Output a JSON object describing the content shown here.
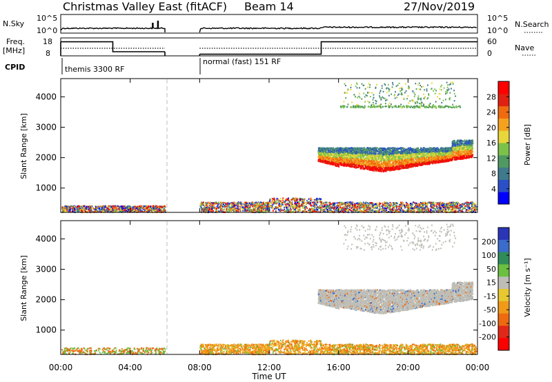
{
  "header": {
    "title": "Christmas Valley East (fitACF)",
    "beam": "Beam 14",
    "date": "27/Nov/2019"
  },
  "panels": {
    "nsky": {
      "label": "N.Sky",
      "ticks": [
        "10^5",
        "10^0"
      ],
      "right_label": "N.Search",
      "right_ticks": [
        "10^5",
        "10^0"
      ]
    },
    "freq": {
      "label_line1": "Freq.",
      "label_line2": "[MHz]",
      "ticks": [
        "18",
        "8"
      ],
      "right_label": "Nave",
      "right_ticks": [
        "60",
        "0"
      ]
    },
    "cpid": {
      "label": "CPID",
      "segments": [
        {
          "text": "themis 3300 RF",
          "start_hour": 0,
          "end_hour": 6
        },
        {
          "text": "normal (fast) 151 RF",
          "start_hour": 8,
          "end_hour": 24
        }
      ]
    }
  },
  "x_axis": {
    "label": "Time UT",
    "ticks": [
      "00:00",
      "04:00",
      "08:00",
      "12:00",
      "16:00",
      "20:00",
      "00:00"
    ],
    "tick_hours": [
      0,
      4,
      8,
      12,
      16,
      20,
      24
    ],
    "range_hours": [
      0,
      24
    ],
    "data_gap_hours": [
      6,
      8
    ]
  },
  "colors": {
    "power": [
      "#0000ff",
      "#2a4fc8",
      "#3f7a8c",
      "#4f9a62",
      "#7cc24a",
      "#e8d63a",
      "#f4a21e",
      "#f06a10",
      "#e02010",
      "#ff0000"
    ],
    "velocity": [
      "#2a35b8",
      "#3a6ccc",
      "#2f8c58",
      "#6cc040",
      "#bebeb6",
      "#e8c830",
      "#f09a18",
      "#ee6a10",
      "#e02818",
      "#ff0000"
    ]
  },
  "chart_data": [
    {
      "type": "heatmap",
      "name": "power",
      "ylabel": "Slant Range [km]",
      "yticks": [
        1000,
        2000,
        3000,
        4000
      ],
      "ylim": [
        200,
        4600
      ],
      "colorbar": {
        "label": "Power [dB]",
        "ticks": [
          "4",
          "8",
          "12",
          "16",
          "20",
          "24",
          "28"
        ],
        "tick_values": [
          4,
          8,
          12,
          16,
          20,
          24,
          28
        ],
        "range": [
          0,
          32
        ]
      },
      "echo_regions": [
        {
          "hours": [
            0,
            6
          ],
          "range_km": [
            200,
            420
          ],
          "value": "low-mixed"
        },
        {
          "hours": [
            8,
            24
          ],
          "range_km": [
            200,
            520
          ],
          "value": "mixed"
        },
        {
          "hours": [
            14.8,
            23.6
          ],
          "range_km": [
            1500,
            2500
          ],
          "value": "20-28 dB lower edge"
        },
        {
          "hours": [
            16,
            23
          ],
          "range_km": [
            3600,
            4500
          ],
          "value": "8-16 dB"
        }
      ]
    },
    {
      "type": "heatmap",
      "name": "velocity",
      "ylabel": "Slant Range [km]",
      "yticks": [
        1000,
        2000,
        3000,
        4000
      ],
      "ylim": [
        200,
        4600
      ],
      "colorbar": {
        "label": "Velocity [m s⁻¹]",
        "ticks": [
          "200",
          "100",
          "50",
          "15",
          "-15",
          "-50",
          "-100",
          "-200"
        ],
        "tick_values": [
          200,
          100,
          50,
          15,
          -15,
          -50,
          -100,
          -200
        ],
        "range": [
          -250,
          250
        ]
      },
      "echo_regions": [
        {
          "hours": [
            0,
            6
          ],
          "range_km": [
            200,
            420
          ],
          "value": "orange/green"
        },
        {
          "hours": [
            8,
            24
          ],
          "range_km": [
            200,
            700
          ],
          "value": "orange -50"
        },
        {
          "hours": [
            14.8,
            23.6
          ],
          "range_km": [
            1500,
            2500
          ],
          "value": "grey -15..15"
        },
        {
          "hours": [
            16,
            23
          ],
          "range_km": [
            3600,
            4500
          ],
          "value": "grey"
        }
      ]
    }
  ]
}
